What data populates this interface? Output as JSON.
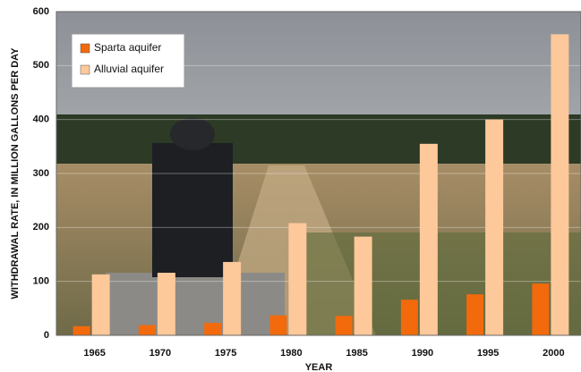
{
  "chart_data": {
    "type": "bar",
    "x_label": "YEAR",
    "y_label": "WITHDRAWAL RATE, IN MILLION GALLONS PER DAY",
    "categories": [
      "1965",
      "1970",
      "1975",
      "1980",
      "1985",
      "1990",
      "1995",
      "2000"
    ],
    "series": [
      {
        "name": "Sparta aquifer",
        "color": "#f26a0c",
        "values": [
          17,
          19,
          23,
          37,
          36,
          66,
          76,
          96
        ]
      },
      {
        "name": "Alluvial aquifer",
        "color": "#fdc89a",
        "values": [
          113,
          116,
          136,
          208,
          183,
          355,
          400,
          558
        ]
      }
    ],
    "ylim": [
      0,
      600
    ],
    "yticks": [
      0,
      100,
      200,
      300,
      400,
      500,
      600
    ],
    "grid": true,
    "legend": "top-left"
  }
}
